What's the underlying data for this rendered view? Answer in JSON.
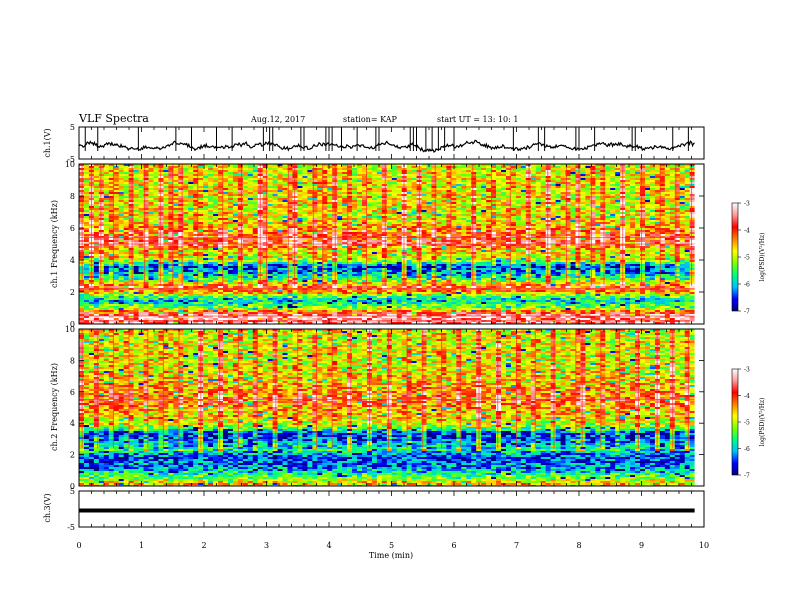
{
  "header": {
    "title": "VLF Spectra",
    "date": "Aug.12, 2017",
    "station": "station= KAP",
    "start": "start UT = 13: 10: 1"
  },
  "colorbar": {
    "label": "log(PSD)(V²/Hz)",
    "range": [
      -7,
      -3
    ],
    "ticks": [
      "-3",
      "-4",
      "-5",
      "-6",
      "-7"
    ],
    "colors": [
      "#00007f",
      "#0000ff",
      "#00bfff",
      "#00ff7f",
      "#7fff00",
      "#ffff00",
      "#ff7f00",
      "#ff0000",
      "#ff9999",
      "#ffffff"
    ]
  },
  "chart_data": [
    {
      "type": "line",
      "name": "ch1-waveform",
      "ylabel": "ch.1(V)",
      "ylim": [
        -5,
        5
      ],
      "yticks": [
        "5",
        "-5"
      ],
      "x_range": [
        0,
        9.85
      ],
      "description_of_values": "noisy voltage trace around -1 V with spikes to ±5 V",
      "mean": -1.0,
      "spike_times": [
        0.1,
        0.3,
        0.95,
        1.55,
        1.8,
        2.2,
        2.45,
        2.95,
        3.05,
        3.1,
        3.55,
        3.6,
        3.95,
        4.0,
        4.05,
        4.2,
        4.45,
        4.75,
        4.8,
        5.3,
        5.35,
        5.4,
        5.55,
        5.65,
        5.75,
        5.85,
        6.0,
        6.95,
        7.35,
        7.45,
        7.95,
        8.0,
        8.25,
        8.85,
        8.9,
        9.5,
        9.75
      ]
    },
    {
      "type": "heatmap",
      "name": "ch1-spectrogram",
      "ylabel": "ch.1 Frequency (kHz)",
      "ylim": [
        0,
        10
      ],
      "yticks": [
        "10",
        "8",
        "6",
        "4",
        "2",
        "0"
      ],
      "x_range": [
        0,
        9.85
      ],
      "value_range": [
        -7,
        -3
      ],
      "bands_khz": [
        {
          "freq": 0.2,
          "level": -3.4
        },
        {
          "freq": 0.5,
          "level": -3.2
        },
        {
          "freq": 1.0,
          "level": -5.2
        },
        {
          "freq": 1.5,
          "level": -6.0
        },
        {
          "freq": 2.0,
          "level": -4.4
        },
        {
          "freq": 2.2,
          "level": -3.9
        },
        {
          "freq": 2.8,
          "level": -5.6
        },
        {
          "freq": 3.2,
          "level": -6.2
        },
        {
          "freq": 3.6,
          "level": -6.6
        },
        {
          "freq": 4.0,
          "level": -5.0
        },
        {
          "freq": 4.6,
          "level": -4.8
        },
        {
          "freq": 5.0,
          "level": -3.8
        },
        {
          "freq": 5.4,
          "level": -4.0
        },
        {
          "freq": 6.5,
          "level": -4.9
        },
        {
          "freq": 8.0,
          "level": -4.8
        },
        {
          "freq": 9.5,
          "level": -4.9
        }
      ],
      "impulse_times": [
        0.05,
        0.2,
        0.35,
        0.55,
        0.85,
        1.05,
        1.3,
        1.5,
        1.65,
        1.9,
        2.3,
        2.6,
        2.9,
        3.0,
        3.35,
        3.45,
        3.75,
        3.9,
        4.1,
        4.3,
        4.6,
        4.9,
        5.2,
        5.45,
        5.7,
        5.95,
        6.3,
        6.6,
        6.9,
        7.2,
        7.5,
        7.8,
        8.0,
        8.2,
        8.4,
        8.7,
        9.0,
        9.3,
        9.55,
        9.8
      ]
    },
    {
      "type": "heatmap",
      "name": "ch2-spectrogram",
      "ylabel": "ch.2 Frequency (kHz)",
      "ylim": [
        0,
        10
      ],
      "yticks": [
        "10",
        "8",
        "6",
        "4",
        "2",
        "0"
      ],
      "x_range": [
        0,
        9.85
      ],
      "value_range": [
        -7,
        -3
      ],
      "bands_khz": [
        {
          "freq": 0.2,
          "level": -4.6
        },
        {
          "freq": 0.6,
          "level": -5.4
        },
        {
          "freq": 1.2,
          "level": -6.2
        },
        {
          "freq": 1.8,
          "level": -6.4
        },
        {
          "freq": 2.3,
          "level": -5.8
        },
        {
          "freq": 2.8,
          "level": -6.3
        },
        {
          "freq": 3.3,
          "level": -6.7
        },
        {
          "freq": 3.8,
          "level": -5.2
        },
        {
          "freq": 4.3,
          "level": -4.8
        },
        {
          "freq": 4.9,
          "level": -4.6
        },
        {
          "freq": 5.5,
          "level": -4.1
        },
        {
          "freq": 6.0,
          "level": -4.5
        },
        {
          "freq": 7.5,
          "level": -4.9
        },
        {
          "freq": 9.0,
          "level": -4.9
        }
      ],
      "impulse_times": [
        0.05,
        0.3,
        0.55,
        0.8,
        1.1,
        1.35,
        1.6,
        1.95,
        2.25,
        2.55,
        2.85,
        3.15,
        3.5,
        3.8,
        4.05,
        4.35,
        4.65,
        4.95,
        5.25,
        5.5,
        5.8,
        6.1,
        6.4,
        6.7,
        7.0,
        7.3,
        7.6,
        7.95,
        8.05,
        8.35,
        8.65,
        8.95,
        9.25,
        9.5,
        9.75
      ]
    },
    {
      "type": "line",
      "name": "ch3-waveform",
      "ylabel": "ch.3(V)",
      "ylim": [
        -5,
        5
      ],
      "yticks": [
        "5",
        "-5"
      ],
      "x_range": [
        0,
        9.85
      ],
      "constant_value": 0.0
    }
  ],
  "xaxis": {
    "label": "Time (min)",
    "range": [
      0,
      10
    ],
    "ticks": [
      "0",
      "1",
      "2",
      "3",
      "4",
      "5",
      "6",
      "7",
      "8",
      "9",
      "10"
    ]
  }
}
